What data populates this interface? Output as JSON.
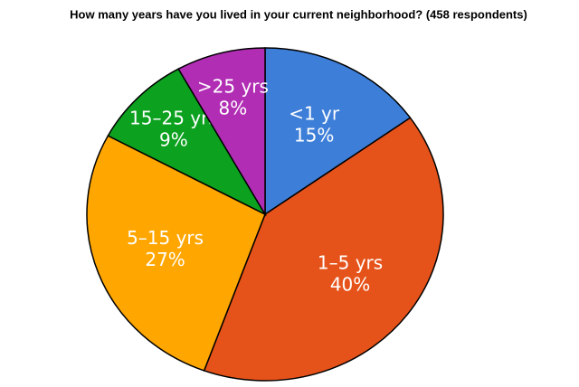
{
  "chart_data": {
    "type": "pie",
    "title": "How many years have you lived in your current neighborhood? (458 respondents)",
    "categories": [
      "<1 yr",
      "1–5 yrs",
      "5–15 yrs",
      "15–25 yrs",
      ">25 yrs"
    ],
    "values": [
      15,
      40,
      27,
      9,
      8
    ],
    "value_labels": [
      "15%",
      "40%",
      "27%",
      "9%",
      "8%"
    ],
    "colors": [
      "#3d7ed8",
      "#e6531a",
      "#ffa600",
      "#0ca11f",
      "#b12db4"
    ]
  }
}
